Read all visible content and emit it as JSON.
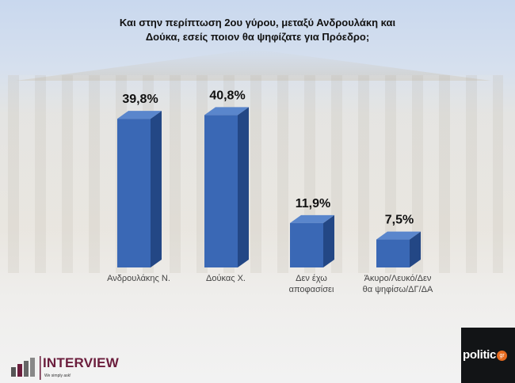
{
  "title_lines": [
    "Και στην περίπτωση 2ου γύρου, μεταξύ Ανδρουλάκη και",
    "Δούκα, εσείς ποιον θα ψηφίζατε για Πρόεδρο;"
  ],
  "chart_data": {
    "type": "bar",
    "style": "3d-column",
    "title": "Και στην περίπτωση 2ου γύρου, μεταξύ Ανδρουλάκη και Δούκα, εσείς ποιον θα ψηφίζατε για Πρόεδρο;",
    "categories": [
      [
        "Ανδρουλάκης Ν."
      ],
      [
        "Δούκας Χ."
      ],
      [
        "Δεν έχω",
        "αποφασίσει"
      ],
      [
        "Άκυρο/Λευκό/Δεν",
        "θα ψηφίσω/ΔΓ/ΔΑ"
      ]
    ],
    "values": [
      39.8,
      40.8,
      11.9,
      7.5
    ],
    "data_labels": [
      "39,8%",
      "40,8%",
      "11,9%",
      "7,5%"
    ],
    "unit": "%",
    "ylim": [
      0,
      45
    ],
    "grid": false,
    "colors": {
      "front": "#3a68b5",
      "side": "#234785",
      "top": "#5a86cc"
    }
  },
  "logos": {
    "interview": "INTERVIEW",
    "interview_tagline": "We simply ask!",
    "politic": "politic",
    "politic_suffix": "gr"
  }
}
